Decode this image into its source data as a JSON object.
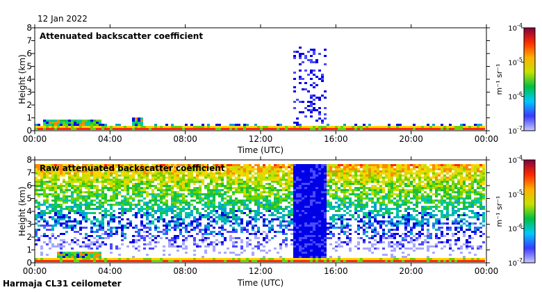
{
  "date_label": "12 Jan 2022",
  "footer": "Harmaja CL31 ceilometer",
  "colors": {
    "profile": [
      "#fffdf8",
      "#a8a8ff",
      "#4a4aff",
      "#0000e6",
      "#009fd8",
      "#00c9a0",
      "#19c23b",
      "#6bd400",
      "#c8e000",
      "#ffd400",
      "#ff8a00",
      "#ff2a00",
      "#b0004a",
      "#6a0070"
    ],
    "colorbar": [
      "#c8c8ff",
      "#3a3aff",
      "#00c8ff",
      "#00c040",
      "#c8e000",
      "#ffb000",
      "#ff2a00",
      "#800040"
    ]
  },
  "chart_data": [
    {
      "type": "heatmap",
      "title": "Attenuated backscatter coefficient",
      "xlabel": "Time (UTC)",
      "ylabel": "Height (km)",
      "xlim": [
        0,
        24
      ],
      "ylim": [
        0,
        8
      ],
      "x_tick_labels": [
        "00:00",
        "04:00",
        "08:00",
        "12:00",
        "16:00",
        "20:00",
        "00:00"
      ],
      "y_ticks": [
        0,
        1,
        2,
        3,
        4,
        5,
        6,
        7,
        8
      ],
      "colorbar": {
        "label": "m⁻¹ sr⁻¹",
        "scale": "log",
        "tick_base": "10",
        "tick_exponents": [
          "-4",
          "-5",
          "-6",
          "-7"
        ]
      },
      "features": [
        {
          "name": "surface layer",
          "time_range": [
            0,
            24
          ],
          "height_range": [
            0,
            0.3
          ]
        },
        {
          "name": "low cloud",
          "time_range": [
            0.5,
            3.6
          ],
          "height_range": [
            0.4,
            0.9
          ]
        },
        {
          "name": "low cloud",
          "time_range": [
            5.2,
            5.8
          ],
          "height_range": [
            0.3,
            1.1
          ]
        },
        {
          "name": "precipitation streaks",
          "time_range": [
            13.8,
            15.5
          ],
          "height_range": [
            0.2,
            6.5
          ]
        }
      ]
    },
    {
      "type": "heatmap",
      "title": "Raw attenuated backscatter coefficient",
      "xlabel": "Time (UTC)",
      "ylabel": "Height (km)",
      "xlim": [
        0,
        24
      ],
      "ylim": [
        0,
        8
      ],
      "x_tick_labels": [
        "00:00",
        "04:00",
        "08:00",
        "12:00",
        "16:00",
        "20:00",
        "00:00"
      ],
      "y_ticks": [
        0,
        1,
        2,
        3,
        4,
        5,
        6,
        7,
        8
      ],
      "colorbar": {
        "label": "m⁻¹ sr⁻¹",
        "scale": "log",
        "tick_base": "10",
        "tick_exponents": [
          "-4",
          "-5",
          "-6",
          "-7"
        ]
      },
      "features": [
        {
          "name": "noise field",
          "time_range": [
            0,
            24
          ],
          "height_range": [
            1.0,
            7.7
          ]
        },
        {
          "name": "surface layer",
          "time_range": [
            0,
            24
          ],
          "height_range": [
            0,
            0.3
          ]
        },
        {
          "name": "low cloud",
          "time_range": [
            1.2,
            3.6
          ],
          "height_range": [
            0.4,
            0.9
          ]
        },
        {
          "name": "precipitation",
          "time_range": [
            13.8,
            15.5
          ],
          "height_range": [
            0.2,
            7.7
          ]
        }
      ]
    }
  ]
}
